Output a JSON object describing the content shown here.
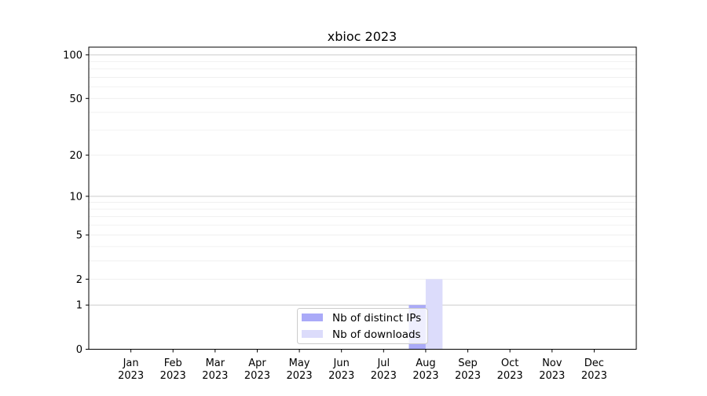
{
  "chart_data": {
    "type": "bar",
    "title": "xbioc 2023",
    "xlabel": "",
    "ylabel": "",
    "yscale": "log(1+y)",
    "ylim": [
      0,
      113
    ],
    "yticks": [
      0,
      1,
      2,
      5,
      10,
      20,
      50,
      100
    ],
    "ytick_labels": [
      "0",
      "1",
      "2",
      "5",
      "10",
      "20",
      "50",
      "100"
    ],
    "categories": [
      "Jan\n2023",
      "Feb\n2023",
      "Mar\n2023",
      "Apr\n2023",
      "May\n2023",
      "Jun\n2023",
      "Jul\n2023",
      "Aug\n2023",
      "Sep\n2023",
      "Oct\n2023",
      "Nov\n2023",
      "Dec\n2023"
    ],
    "series": [
      {
        "name": "Nb of distinct IPs",
        "color": "#aaaaf8",
        "values": [
          0,
          0,
          0,
          0,
          0,
          0,
          0,
          1,
          0,
          0,
          0,
          0
        ]
      },
      {
        "name": "Nb of downloads",
        "color": "#dcdcfb",
        "values": [
          0,
          0,
          0,
          0,
          0,
          0,
          0,
          2,
          0,
          0,
          0,
          0
        ]
      }
    ],
    "grid": true,
    "legend_position": "bottom-center"
  }
}
